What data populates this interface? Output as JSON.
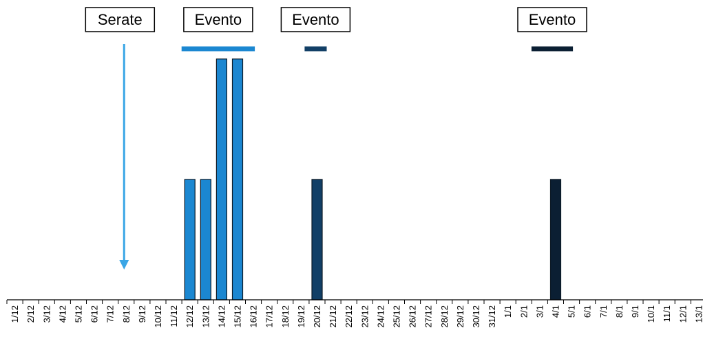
{
  "chart_data": {
    "type": "bar",
    "title": "",
    "xlabel": "",
    "ylabel": "",
    "ylim": [
      0,
      4.5
    ],
    "categories": [
      "1/12",
      "2/12",
      "3/12",
      "4/12",
      "5/12",
      "6/12",
      "7/12",
      "8/12",
      "9/12",
      "10/12",
      "11/12",
      "12/12",
      "13/12",
      "14/12",
      "15/12",
      "16/12",
      "17/12",
      "18/12",
      "19/12",
      "20/12",
      "21/12",
      "22/12",
      "23/12",
      "24/12",
      "25/12",
      "26/12",
      "27/12",
      "28/12",
      "29/12",
      "30/12",
      "31/12",
      "1/1",
      "2/1",
      "3/1",
      "4/1",
      "5/1",
      "6/1",
      "7/1",
      "8/1",
      "9/1",
      "10/1",
      "11/1",
      "12/1",
      "13/1"
    ],
    "values": [
      0,
      0,
      0,
      0,
      0,
      0,
      0,
      0,
      0,
      0,
      0,
      2,
      2,
      4,
      4,
      0,
      0,
      0,
      0,
      2,
      0,
      0,
      0,
      0,
      0,
      0,
      0,
      0,
      0,
      0,
      0,
      0,
      0,
      0,
      2,
      0,
      0,
      0,
      0,
      0,
      0,
      0,
      0,
      0
    ],
    "bar_colors": {
      "12/12": "#1b87d1",
      "13/12": "#1b87d1",
      "14/12": "#1b87d1",
      "15/12": "#1b87d1",
      "20/12": "#123f66",
      "4/1": "#0b1f33"
    },
    "annotations": [
      {
        "label": "Serate",
        "marker": "arrow-down",
        "at": "8/12",
        "color": "#3aa6e6"
      },
      {
        "label": "Evento",
        "marker": "span-line",
        "from": "12/12",
        "to": "16/12",
        "color": "#1b87d1"
      },
      {
        "label": "Evento",
        "marker": "span-line",
        "from": "19/12",
        "to": "20/12",
        "color": "#123f66"
      },
      {
        "label": "Evento",
        "marker": "span-line",
        "from": "3/1",
        "to": "5/1",
        "color": "#0b1f33"
      }
    ],
    "grid": false,
    "legend": "none"
  }
}
